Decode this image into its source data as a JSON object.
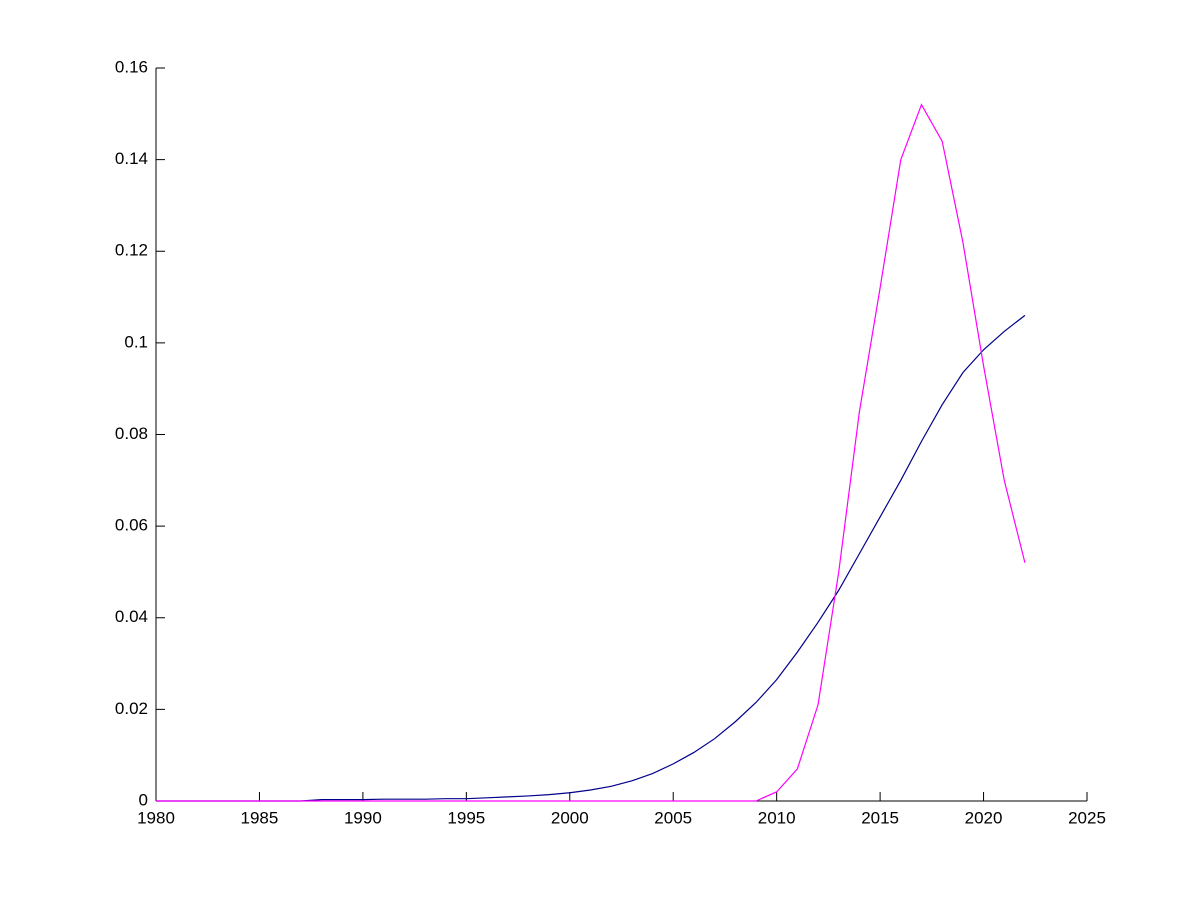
{
  "chart_data": {
    "type": "line",
    "x": [
      1980,
      1981,
      1982,
      1983,
      1984,
      1985,
      1986,
      1987,
      1988,
      1989,
      1990,
      1991,
      1992,
      1993,
      1994,
      1995,
      1996,
      1997,
      1998,
      1999,
      2000,
      2001,
      2002,
      2003,
      2004,
      2005,
      2006,
      2007,
      2008,
      2009,
      2010,
      2011,
      2012,
      2013,
      2014,
      2015,
      2016,
      2017,
      2018,
      2019,
      2020,
      2021,
      2022
    ],
    "series": [
      {
        "color": "#00008b",
        "values": [
          0,
          0,
          0,
          0,
          0,
          0,
          0,
          0,
          0.0003,
          0.0003,
          0.0003,
          0.0004,
          0.0004,
          0.0004,
          0.0005,
          0.0005,
          0.0007,
          0.0009,
          0.0011,
          0.0014,
          0.0018,
          0.0024,
          0.0032,
          0.0044,
          0.006,
          0.0081,
          0.0106,
          0.0136,
          0.0173,
          0.0215,
          0.0265,
          0.0325,
          0.039,
          0.046,
          0.054,
          0.062,
          0.07,
          0.0785,
          0.0865,
          0.0935,
          0.0985,
          0.1025,
          0.106
        ]
      },
      {
        "color": "#ff00ff",
        "values": [
          0,
          0,
          0,
          0,
          0,
          0,
          0,
          0,
          0,
          0,
          0,
          0,
          0,
          0,
          0,
          0,
          0,
          0,
          0,
          0,
          0,
          0,
          0,
          0,
          0,
          0,
          0,
          0,
          0,
          0,
          0.002,
          0.007,
          0.021,
          0.05,
          0.085,
          0.112,
          0.14,
          0.152,
          0.144,
          0.122,
          0.095,
          0.07,
          0.052
        ]
      }
    ],
    "xlim": [
      1980,
      2025
    ],
    "xticks": [
      1980,
      1985,
      1990,
      1995,
      2000,
      2005,
      2010,
      2015,
      2020,
      2025
    ],
    "ylim": [
      0,
      0.16
    ],
    "yticks": [
      0,
      0.02,
      0.04,
      0.06,
      0.08,
      0.1,
      0.12,
      0.14,
      0.16
    ]
  }
}
